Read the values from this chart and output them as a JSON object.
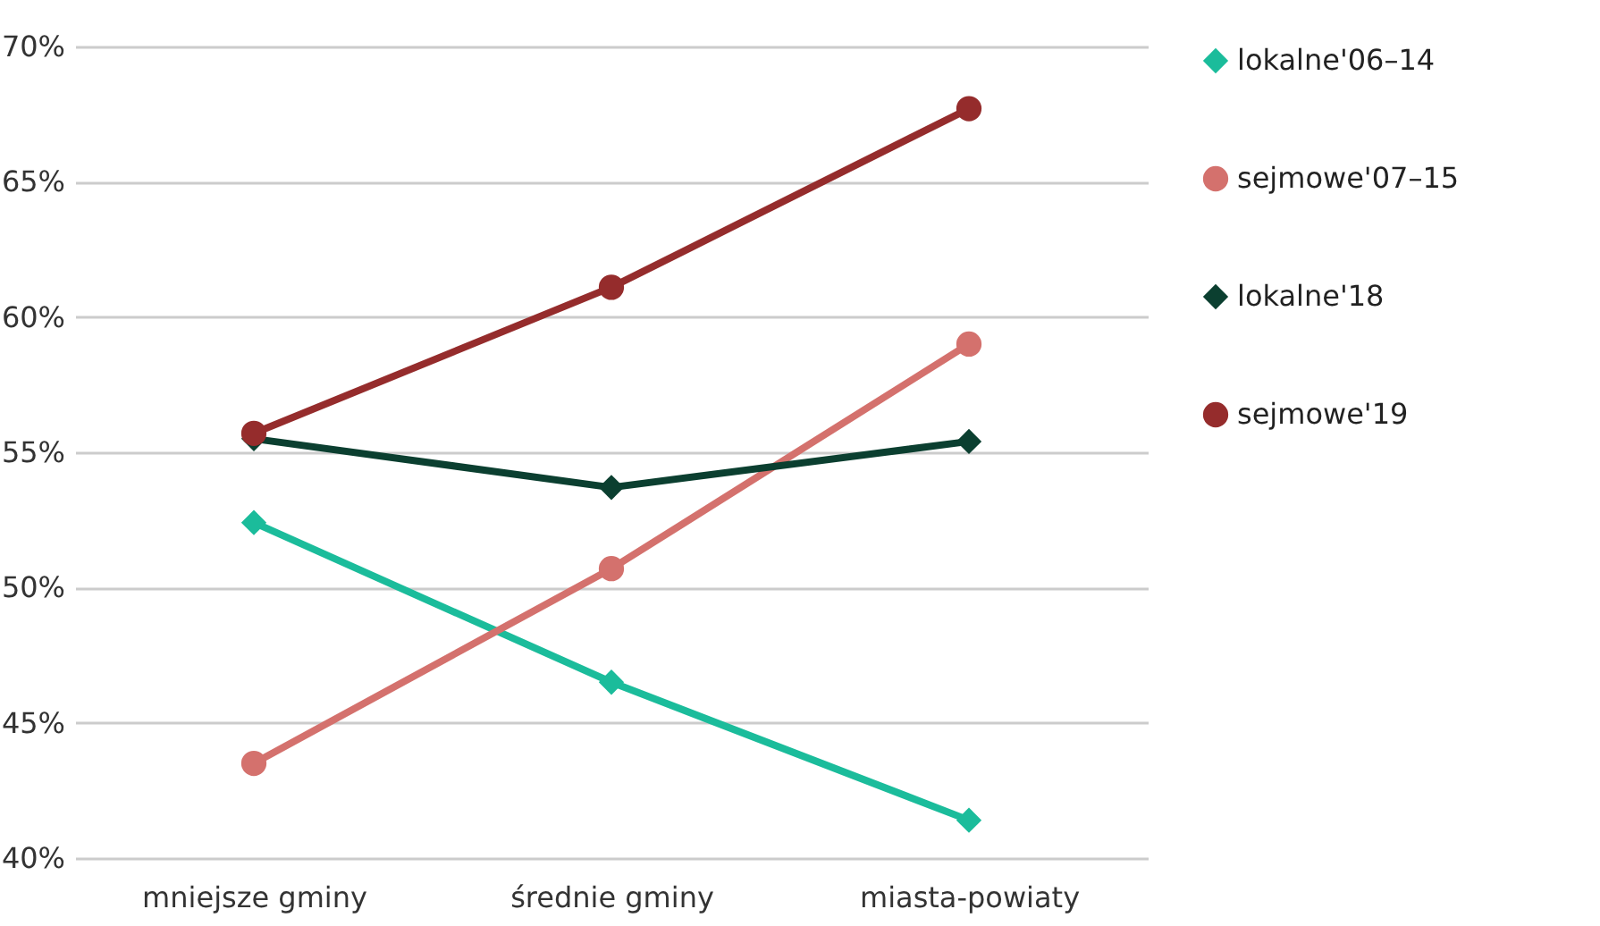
{
  "chart_data": {
    "type": "line",
    "categories": [
      "mniejsze gminy",
      "średnie gminy",
      "miasta-powiaty"
    ],
    "series": [
      {
        "name": "lokalne'06–14",
        "color": "#1bbc9b",
        "marker": "diamond",
        "values": [
          52.4,
          46.5,
          41.4
        ]
      },
      {
        "name": "sejmowe'07–15",
        "color": "#d4716d",
        "marker": "circle",
        "values": [
          43.5,
          50.7,
          59.0
        ]
      },
      {
        "name": "lokalne'18",
        "color": "#0b3f30",
        "marker": "diamond",
        "values": [
          55.5,
          53.7,
          55.4
        ]
      },
      {
        "name": "sejmowe'19",
        "color": "#952c2c",
        "marker": "circle",
        "values": [
          55.7,
          61.1,
          67.7
        ]
      }
    ],
    "ylim": [
      40,
      70
    ],
    "yticks": [
      {
        "value": 40,
        "label": "40%"
      },
      {
        "value": 45,
        "label": "45%"
      },
      {
        "value": 50,
        "label": "50%"
      },
      {
        "value": 55,
        "label": "55%"
      },
      {
        "value": 60,
        "label": "60%"
      },
      {
        "value": 65,
        "label": "65%"
      },
      {
        "value": 70,
        "label": "70%"
      }
    ],
    "grid": "y",
    "legend": "right",
    "line_style": "solid"
  }
}
